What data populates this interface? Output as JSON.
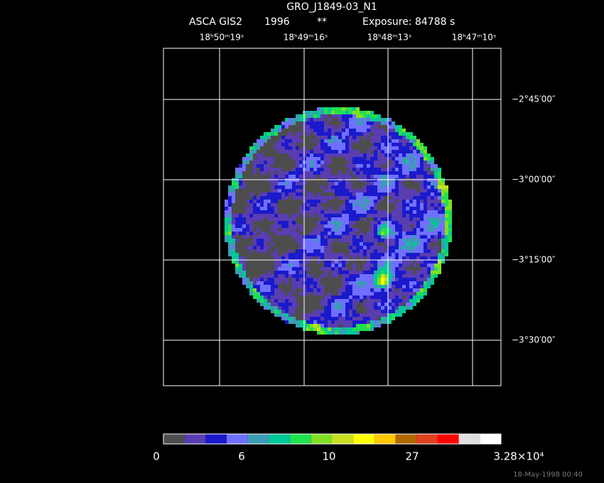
{
  "header": {
    "title": "GRO_J1849-03_N1",
    "instrument": "ASCA GIS2",
    "year": "1996",
    "flag": "**",
    "exposure": "Exposure: 84788 s"
  },
  "ra_labels": [
    "18ʰ50ᵐ19ˢ",
    "18ʰ49ᵐ16ˢ",
    "18ʰ48ᵐ13ˢ",
    "18ʰ47ᵐ10ˢ"
  ],
  "dec_labels": [
    "−2°45′00″",
    "−3°00′00″",
    "−3°15′00″",
    "−3°30′00″"
  ],
  "colorbar": {
    "colors": [
      "#4d4d4d",
      "#5a3db0",
      "#1a1acc",
      "#7070ff",
      "#3c9cb4",
      "#00c896",
      "#20e050",
      "#80e020",
      "#c8e020",
      "#ffff00",
      "#ffc800",
      "#b06a00",
      "#e04020",
      "#ff0000",
      "#e0e0e0",
      "#ffffff"
    ],
    "labels": [
      "0",
      "6",
      "10",
      "27",
      "3.28×10⁴"
    ]
  },
  "footer": "18-May-1998 00:40"
}
